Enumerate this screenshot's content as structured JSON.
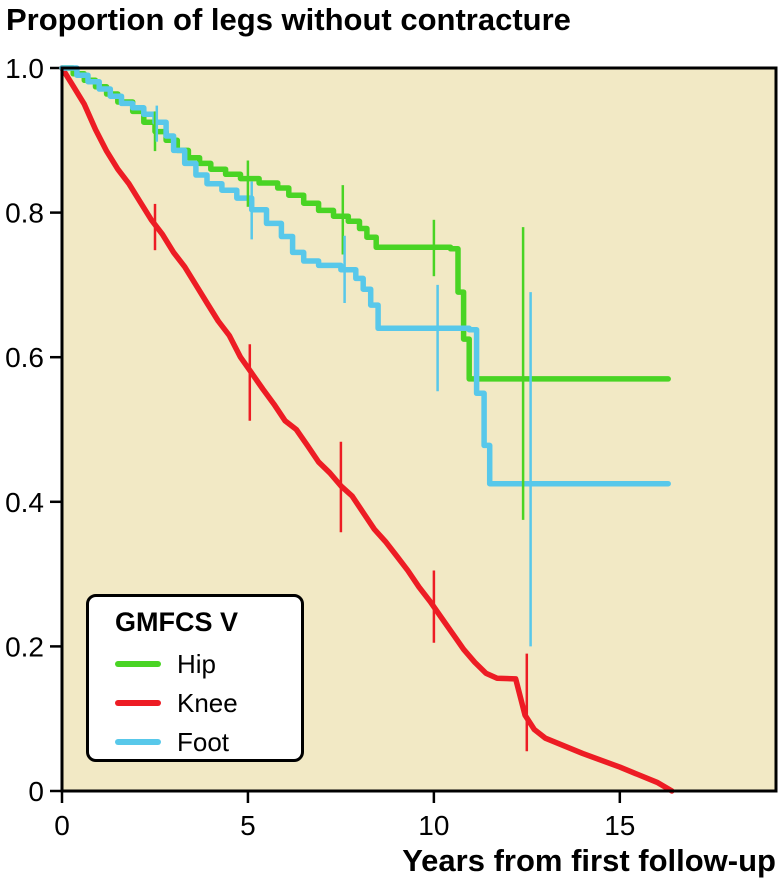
{
  "chart_data": {
    "type": "line",
    "subtype": "kaplan-meier-survival",
    "title": "Proportion of legs without contracture",
    "xlabel": "Years from first follow-up",
    "ylabel": "",
    "xlim": [
      0,
      19.2
    ],
    "ylim": [
      0,
      1.0
    ],
    "x_ticks": [
      0,
      5,
      10,
      15
    ],
    "x_tick_labels": [
      "0",
      "5",
      "10",
      "15"
    ],
    "y_ticks": [
      0,
      0.2,
      0.4,
      0.6,
      0.8,
      1.0
    ],
    "y_tick_labels": [
      "0",
      "0.2",
      "0.4",
      "0.6",
      "0.8",
      "1.0"
    ],
    "grid": false,
    "plot_bg": "#f2e9c5",
    "frame_color": "#000000",
    "legend": {
      "title": "GMFCS V",
      "position": "lower-left",
      "entries": [
        "Hip",
        "Knee",
        "Foot"
      ]
    },
    "series": [
      {
        "name": "Hip",
        "color": "#49d424",
        "interp": "step",
        "points": [
          [
            0,
            1.0
          ],
          [
            0.3,
            0.992
          ],
          [
            0.6,
            0.983
          ],
          [
            0.9,
            0.974
          ],
          [
            1.2,
            0.964
          ],
          [
            1.5,
            0.953
          ],
          [
            1.9,
            0.94
          ],
          [
            2.2,
            0.925
          ],
          [
            2.5,
            0.912
          ],
          [
            2.8,
            0.9
          ],
          [
            3.1,
            0.886
          ],
          [
            3.4,
            0.876
          ],
          [
            3.7,
            0.868
          ],
          [
            4.0,
            0.86
          ],
          [
            4.4,
            0.853
          ],
          [
            4.8,
            0.847
          ],
          [
            5.3,
            0.841
          ],
          [
            5.8,
            0.834
          ],
          [
            6.1,
            0.824
          ],
          [
            6.5,
            0.813
          ],
          [
            6.9,
            0.803
          ],
          [
            7.3,
            0.795
          ],
          [
            7.7,
            0.788
          ],
          [
            8.0,
            0.778
          ],
          [
            8.2,
            0.766
          ],
          [
            8.45,
            0.752
          ],
          [
            10.45,
            0.75
          ],
          [
            10.65,
            0.69
          ],
          [
            10.8,
            0.625
          ],
          [
            10.95,
            0.57
          ],
          [
            16.3,
            0.57
          ]
        ],
        "error_bars": [
          [
            2.5,
            0.885,
            0.94
          ],
          [
            5.0,
            0.808,
            0.872
          ],
          [
            7.55,
            0.742,
            0.838
          ],
          [
            10.0,
            0.712,
            0.79
          ],
          [
            12.4,
            0.375,
            0.78
          ]
        ]
      },
      {
        "name": "Knee",
        "color": "#ed1c24",
        "interp": "linear",
        "points": [
          [
            0,
            1.0
          ],
          [
            0.3,
            0.975
          ],
          [
            0.6,
            0.95
          ],
          [
            0.9,
            0.915
          ],
          [
            1.2,
            0.885
          ],
          [
            1.5,
            0.86
          ],
          [
            1.8,
            0.84
          ],
          [
            2.1,
            0.815
          ],
          [
            2.4,
            0.79
          ],
          [
            2.7,
            0.77
          ],
          [
            3.0,
            0.745
          ],
          [
            3.3,
            0.725
          ],
          [
            3.6,
            0.7
          ],
          [
            3.9,
            0.675
          ],
          [
            4.2,
            0.65
          ],
          [
            4.5,
            0.63
          ],
          [
            4.8,
            0.6
          ],
          [
            5.1,
            0.578
          ],
          [
            5.4,
            0.556
          ],
          [
            5.7,
            0.535
          ],
          [
            6.0,
            0.512
          ],
          [
            6.3,
            0.5
          ],
          [
            6.6,
            0.478
          ],
          [
            6.9,
            0.455
          ],
          [
            7.2,
            0.44
          ],
          [
            7.5,
            0.422
          ],
          [
            7.8,
            0.408
          ],
          [
            8.1,
            0.385
          ],
          [
            8.4,
            0.362
          ],
          [
            8.7,
            0.345
          ],
          [
            9.0,
            0.325
          ],
          [
            9.3,
            0.305
          ],
          [
            9.6,
            0.282
          ],
          [
            9.9,
            0.262
          ],
          [
            10.2,
            0.24
          ],
          [
            10.5,
            0.218
          ],
          [
            10.8,
            0.196
          ],
          [
            11.1,
            0.178
          ],
          [
            11.4,
            0.163
          ],
          [
            11.7,
            0.156
          ],
          [
            12.2,
            0.155
          ],
          [
            12.45,
            0.105
          ],
          [
            12.7,
            0.085
          ],
          [
            13.0,
            0.073
          ],
          [
            14.0,
            0.052
          ],
          [
            15.0,
            0.033
          ],
          [
            16.0,
            0.012
          ],
          [
            16.4,
            0.0
          ]
        ],
        "error_bars": [
          [
            2.5,
            0.748,
            0.812
          ],
          [
            5.05,
            0.512,
            0.618
          ],
          [
            7.5,
            0.358,
            0.483
          ],
          [
            10.0,
            0.205,
            0.305
          ],
          [
            12.5,
            0.055,
            0.19
          ]
        ]
      },
      {
        "name": "Foot",
        "color": "#58c8ea",
        "interp": "step",
        "points": [
          [
            0,
            1.0
          ],
          [
            0.4,
            0.99
          ],
          [
            0.7,
            0.981
          ],
          [
            1.0,
            0.971
          ],
          [
            1.3,
            0.961
          ],
          [
            1.6,
            0.951
          ],
          [
            1.9,
            0.945
          ],
          [
            2.2,
            0.936
          ],
          [
            2.5,
            0.925
          ],
          [
            2.8,
            0.906
          ],
          [
            3.0,
            0.886
          ],
          [
            3.3,
            0.868
          ],
          [
            3.6,
            0.852
          ],
          [
            3.9,
            0.84
          ],
          [
            4.3,
            0.831
          ],
          [
            4.7,
            0.82
          ],
          [
            5.1,
            0.804
          ],
          [
            5.5,
            0.785
          ],
          [
            5.9,
            0.767
          ],
          [
            6.2,
            0.745
          ],
          [
            6.5,
            0.733
          ],
          [
            6.9,
            0.727
          ],
          [
            7.5,
            0.721
          ],
          [
            7.9,
            0.709
          ],
          [
            8.1,
            0.694
          ],
          [
            8.3,
            0.672
          ],
          [
            8.5,
            0.64
          ],
          [
            10.95,
            0.638
          ],
          [
            11.15,
            0.55
          ],
          [
            11.35,
            0.478
          ],
          [
            11.5,
            0.425
          ],
          [
            16.3,
            0.425
          ]
        ],
        "error_bars": [
          [
            2.55,
            0.898,
            0.948
          ],
          [
            5.1,
            0.763,
            0.843
          ],
          [
            7.6,
            0.675,
            0.768
          ],
          [
            10.1,
            0.553,
            0.7
          ],
          [
            12.6,
            0.2,
            0.69
          ]
        ]
      }
    ]
  }
}
